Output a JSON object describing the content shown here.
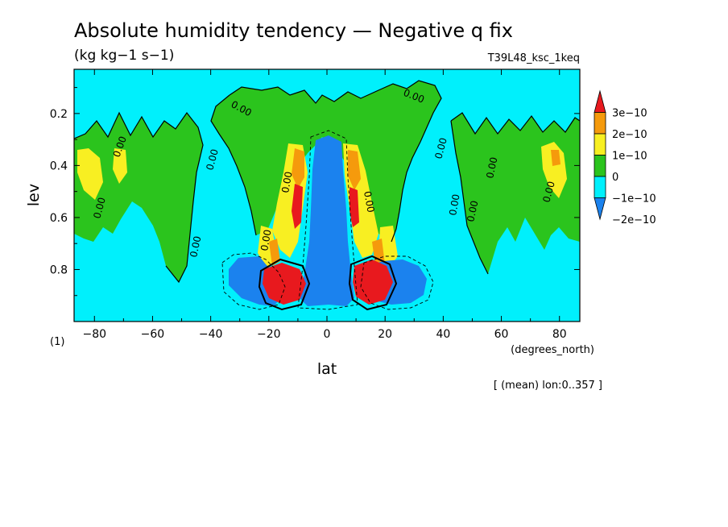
{
  "chart_data": {
    "type": "heatmap",
    "title": "Absolute humidity tendency — Negative q fix",
    "units": "(kg kg−1 s−1)",
    "run_label": "T39L48_ksc_1keq",
    "xlabel": "lat",
    "x_units": "(degrees_north)",
    "ylabel": "lev",
    "y_units": "(1)",
    "footnote": "[ (mean) lon:0..357 ]",
    "xlim": [
      -87,
      87
    ],
    "ylim": [
      1.0,
      0.03
    ],
    "x_ticks": [
      -80,
      -60,
      -40,
      -20,
      0,
      20,
      40,
      60,
      80
    ],
    "x_tick_labels": [
      "−80",
      "−60",
      "−40",
      "−20",
      "0",
      "20",
      "40",
      "60",
      "80"
    ],
    "y_ticks": [
      0.2,
      0.4,
      0.6,
      0.8
    ],
    "y_tick_labels": [
      "0.2",
      "0.4",
      "0.6",
      "0.8"
    ],
    "contour_labels": [
      "0.00",
      "0.00",
      "0.00",
      "0.00",
      "0.00",
      "0.00",
      "0.00",
      "0.00",
      "0.00",
      "0.00",
      "0.00",
      "0.00",
      "0.00",
      "0.00"
    ],
    "colorbar": {
      "labels": [
        "3e−10",
        "2e−10",
        "1e−10",
        "0",
        "−1e−10",
        "−2e−10"
      ],
      "colors": [
        "#e8191e",
        "#f59a0c",
        "#f8ef22",
        "#2bc41d",
        "#00f0fc",
        "#1b82ee"
      ]
    },
    "background_value_color": "#00f0fc"
  }
}
